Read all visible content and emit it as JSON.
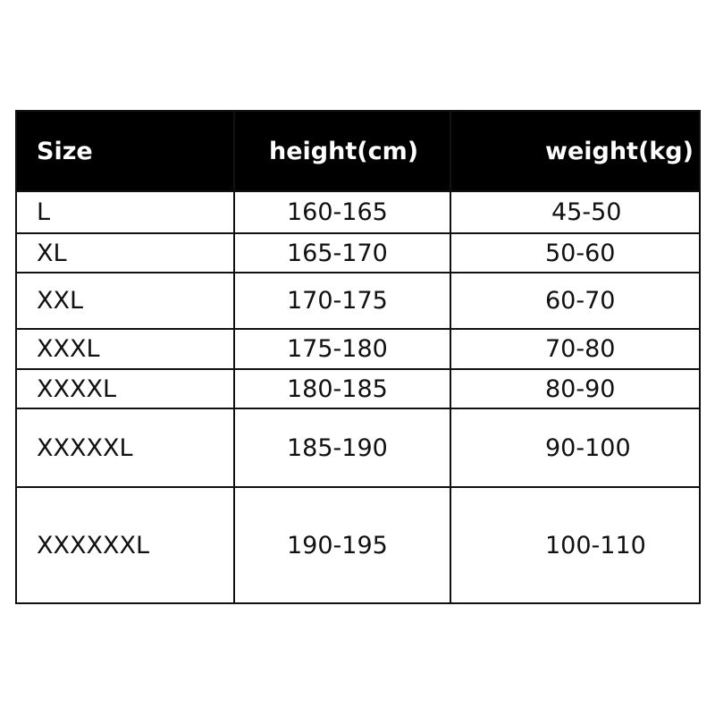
{
  "headers": [
    "Size",
    "height(cm)",
    "weight(kg)"
  ],
  "rows": [
    {
      "size": "L",
      "height": "160-165",
      "weight": "45-50"
    },
    {
      "size": "XL",
      "height": "165-170",
      "weight": "50-60"
    },
    {
      "size": "XXL",
      "height": "170-175",
      "weight": "60-70"
    },
    {
      "size": "XXXL",
      "height": "175-180",
      "weight": "70-80"
    },
    {
      "size": "XXXXL",
      "height": "180-185",
      "weight": "80-90"
    },
    {
      "size": "XXXXXL",
      "height": "185-190",
      "weight": "90-100"
    },
    {
      "size": "XXXXXXL",
      "height": "190-195",
      "weight": "100-110"
    }
  ]
}
